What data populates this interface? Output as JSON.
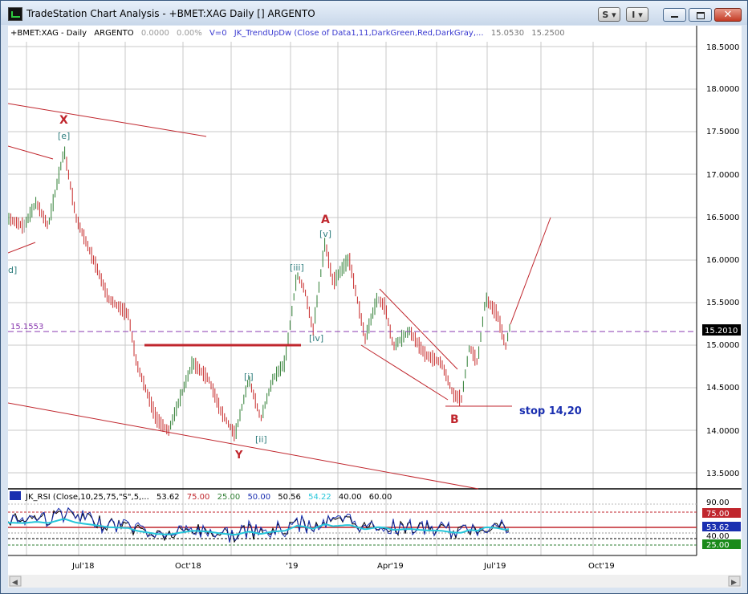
{
  "window": {
    "title": "TradeStation Chart Analysis - +BMET:XAG Daily [] ARGENTO",
    "buttons": {
      "s_label": "S",
      "i_label": "I"
    }
  },
  "legend": {
    "symbol": "+BMET:XAG - Daily",
    "name": "ARGENTO",
    "change": "0.0000",
    "change_pct": "0.00%",
    "volume": "V=0",
    "indicator": "JK_TrendUpDw (Close of Data1,11,DarkGreen,Red,DarkGray,...",
    "val1": "15.0530",
    "val2": "15.2500"
  },
  "rsi_legend": {
    "name": "JK_RSI (Close,10,25,75,\"S\",5,...",
    "v1": "53.62",
    "v2": "75.00",
    "v3": "25.00",
    "v4": "50.00",
    "v5": "50.56",
    "v6": "54.22",
    "v7": "40.00",
    "v8": "60.00"
  },
  "price_axis": [
    "18.5000",
    "18.0000",
    "17.5000",
    "17.0000",
    "16.5000",
    "16.0000",
    "15.5000",
    "15.0000",
    "14.5000",
    "14.0000",
    "13.5000"
  ],
  "rsi_axis": {
    "top": "90.00",
    "tag_75": "75.00",
    "tag_current": "53.62",
    "tag_40": "40.00",
    "tag_25": "25.00"
  },
  "time_axis": [
    "Jul'18",
    "Oct'18",
    "'19",
    "Apr'19",
    "Jul'19",
    "Oct'19"
  ],
  "price_tags": {
    "level": "15.1553",
    "last": "15.2010"
  },
  "annotations": {
    "x": "X",
    "e": "[e]",
    "d": "d]",
    "a": "A",
    "v": "[v]",
    "iii": "[iii]",
    "iv": "[iv]",
    "i": "[i]",
    "ii": "[ii]",
    "y": "Y",
    "b": "B",
    "stop": "stop 14,20"
  },
  "colors": {
    "up": "#2e7d32",
    "down": "#c62828",
    "neutral": "#9e9e9e",
    "trend": "#c0262d",
    "wave": "#2e7d7d",
    "stop": "#1a2fb0"
  }
}
